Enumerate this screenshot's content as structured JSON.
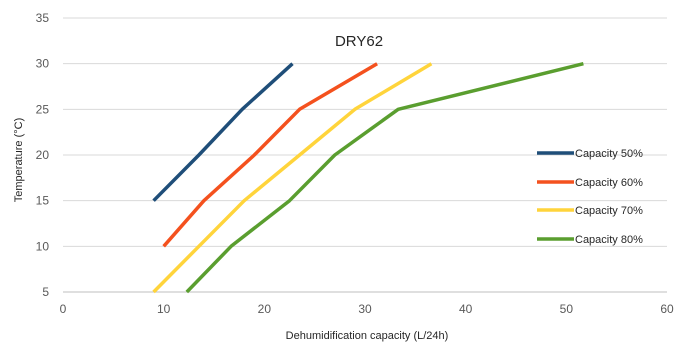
{
  "chart_data": {
    "type": "line",
    "title": "DRY62",
    "xlabel": "Dehumidification capacity (L/24h)",
    "ylabel": "Temperature (°C)",
    "xlim": [
      0,
      60
    ],
    "ylim": [
      5,
      35
    ],
    "xticks": [
      0,
      10,
      20,
      30,
      40,
      50,
      60
    ],
    "yticks": [
      5,
      10,
      15,
      20,
      25,
      30,
      35
    ],
    "grid": "horizontal",
    "legend_position": "right",
    "series": [
      {
        "name": "Capacity 50%",
        "color": "#1f4e79",
        "points": [
          [
            9,
            15
          ],
          [
            13.5,
            20
          ],
          [
            17.8,
            25
          ],
          [
            22.8,
            30
          ]
        ]
      },
      {
        "name": "Capacity 60%",
        "color": "#f4511e",
        "points": [
          [
            10,
            10
          ],
          [
            14,
            15
          ],
          [
            19,
            20
          ],
          [
            23.5,
            25
          ],
          [
            31.2,
            30
          ]
        ]
      },
      {
        "name": "Capacity 70%",
        "color": "#ffd43b",
        "points": [
          [
            9,
            5
          ],
          [
            13.5,
            10
          ],
          [
            18,
            15
          ],
          [
            23.5,
            20
          ],
          [
            29,
            25
          ],
          [
            36.6,
            30
          ]
        ]
      },
      {
        "name": "Capacity 80%",
        "color": "#5a9e2f",
        "points": [
          [
            12.3,
            5
          ],
          [
            16.7,
            10
          ],
          [
            22.5,
            15
          ],
          [
            27,
            20
          ],
          [
            33.3,
            25
          ],
          [
            51.7,
            30
          ]
        ]
      }
    ]
  }
}
